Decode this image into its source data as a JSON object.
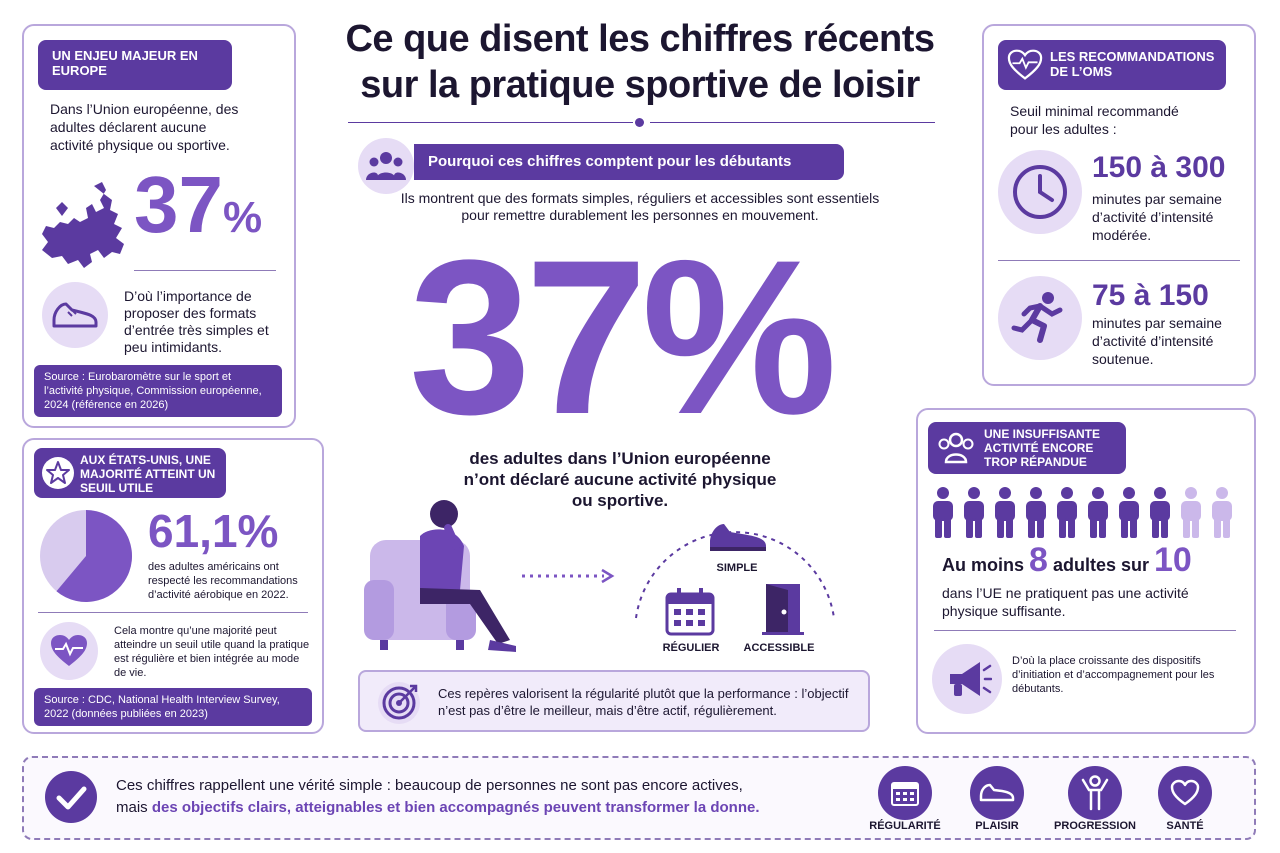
{
  "title": {
    "line1": "Ce que disent les chiffres récents",
    "line2": "sur la pratique sportive de loisir"
  },
  "europe_card": {
    "heading": "UN ENJEU MAJEUR EN EUROPE",
    "text": "Dans l’Union européenne, des adultes déclarent aucune activité physique ou sportive.",
    "stat": "37",
    "stat_unit": "%",
    "note": "D’où l’importance de proposer des formats d’entrée très simples et peu intimidants.",
    "source": "Source : Eurobaromètre sur le sport et l’activité physique, Commission européenne, 2024 (référence en 2026)"
  },
  "usa_card": {
    "heading": "AUX ÉTATS-UNIS, UNE MAJORITÉ ATTEINT UN SEUIL UTILE",
    "stat": "61,1%",
    "pie_value": 61.1,
    "text": "des adultes américains ont respecté les recommandations d’activité aérobique en 2022.",
    "note": "Cela montre qu’une majorité peut atteindre un seuil utile quand la pratique est régulière et bien intégrée au mode de vie.",
    "source": "Source : CDC, National Health Interview Survey, 2022 (données publiées en 2023)"
  },
  "center": {
    "banner": "Pourquoi ces chiffres comptent pour les débutants",
    "intro": "Ils montrent que des formats simples, réguliers et accessibles sont essentiels pour remettre durablement les personnes en mouvement.",
    "big_stat": "37%",
    "big_text": "des adultes dans l’Union européenne n’ont déclaré aucune activité physique ou sportive.",
    "labels": {
      "simple": "SIMPLE",
      "regular": "RÉGULIER",
      "accessible": "ACCESSIBLE"
    },
    "callout": "Ces repères valorisent la régularité plutôt que la performance : l’objectif n’est pas d’être le meilleur, mais d’être actif, régulièrement."
  },
  "who_card": {
    "heading": "LES RECOMMANDATIONS DE L’OMS",
    "intro": "Seuil minimal recommandé pour les adultes :",
    "moderate_range": "150 à 300",
    "moderate_text": "minutes par semaine d’activité d’intensité modérée.",
    "vigorous_range": "75 à 150",
    "vigorous_text": "minutes par semaine d’activité d’intensité soutenue."
  },
  "insufficient_card": {
    "heading": "UNE INSUFFISANTE ACTIVITÉ ENCORE TROP RÉPANDUE",
    "people_total": 10,
    "people_highlighted": 8,
    "line_a": "Au moins",
    "num_a": "8",
    "line_b": "adultes sur",
    "num_b": "10",
    "text": "dans l’UE ne pratiquent pas une activité physique suffisante.",
    "note": "D’où la place croissante des dispositifs d’initiation et d’accompagnement pour les débutants."
  },
  "footer": {
    "text_plain": "Ces chiffres rappellent une vérité simple : beaucoup de personnes ne sont pas encore actives,",
    "text_prefix": "mais ",
    "text_highlight": "des objectifs clairs, atteignables et bien accompagnés peuvent transformer la donne.",
    "icons": [
      "RÉGULARITÉ",
      "PLAISIR",
      "PROGRESSION",
      "SANTÉ"
    ]
  },
  "colors": {
    "primary": "#5b3aa0",
    "accent": "#7c55c3",
    "light": "#e6dcf5",
    "border": "#b9a7dc"
  }
}
